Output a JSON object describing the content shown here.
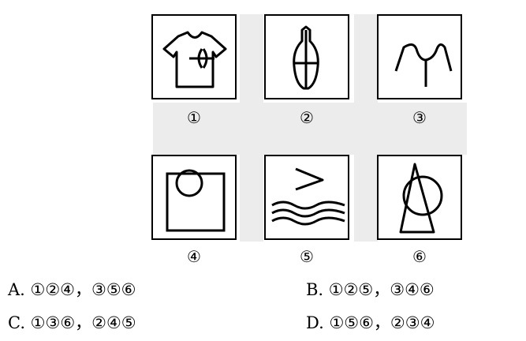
{
  "panels": [
    {
      "label": "①",
      "figure": "t-shirt-with-interlocked-arcs"
    },
    {
      "label": "②",
      "figure": "vase-with-cross"
    },
    {
      "label": "③",
      "figure": "collar-with-vertical-line"
    },
    {
      "label": "④",
      "figure": "square-with-circle-on-top-edge"
    },
    {
      "label": "⑤",
      "figure": "greater-than-sign-over-waves"
    },
    {
      "label": "⑥",
      "figure": "triangle-with-circle"
    }
  ],
  "options": [
    {
      "text": "A. ①②④，③⑤⑥"
    },
    {
      "text": "B. ①②⑤，③④⑥"
    },
    {
      "text": "C. ①③⑥，②④⑤"
    },
    {
      "text": "D. ①⑤⑥，②③④"
    }
  ]
}
